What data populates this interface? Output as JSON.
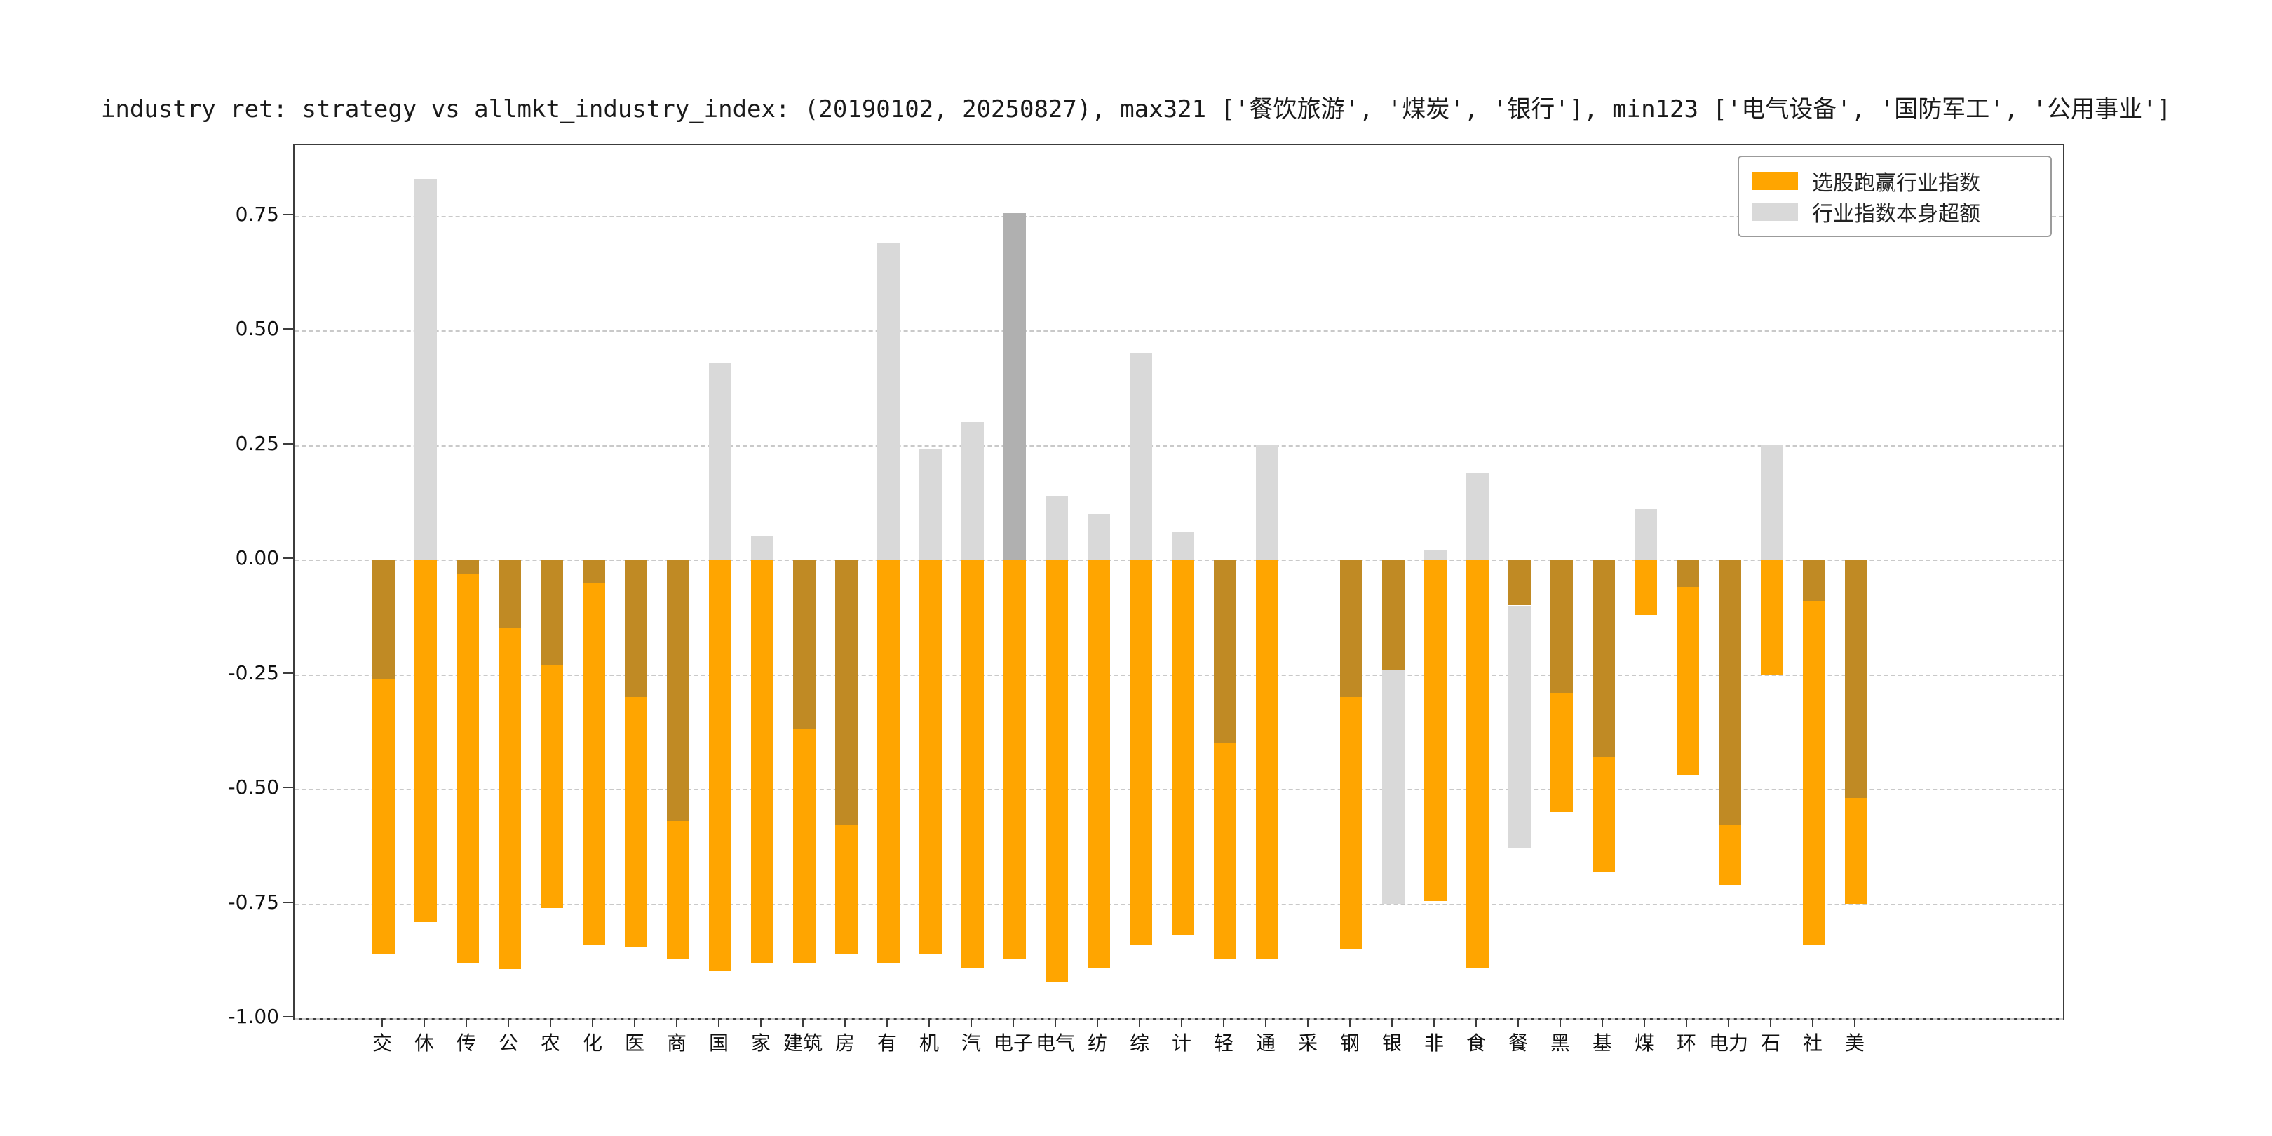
{
  "title": "industry ret: strategy vs allmkt_industry_index: (20190102, 20250827), max321 ['餐饮旅游', '煤炭', '银行'], min123 ['电气设备', '国防军工', '公用事业']",
  "legend": {
    "items": [
      {
        "label": "选股跑赢行业指数"
      },
      {
        "label": "行业指数本身超额"
      }
    ]
  },
  "chart_data": {
    "type": "bar",
    "title": "industry ret: strategy vs allmkt_industry_index: (20190102, 20250827), max321 ['餐饮旅游', '煤炭', '银行'], min123 ['电气设备', '国防军工', '公用事业']",
    "xlabel": "",
    "ylabel": "",
    "grid": "dashed",
    "legend_position": "upper right",
    "ylim": [
      -1.0,
      0.904
    ],
    "yticks": [
      {
        "value": -1.0,
        "label": "-1.00"
      },
      {
        "value": -0.75,
        "label": "-0.75"
      },
      {
        "value": -0.5,
        "label": "-0.50"
      },
      {
        "value": -0.25,
        "label": "-0.25"
      },
      {
        "value": 0.0,
        "label": "0.00"
      },
      {
        "value": 0.25,
        "label": "0.25"
      },
      {
        "value": 0.5,
        "label": "0.50"
      },
      {
        "value": 0.75,
        "label": "0.75"
      }
    ],
    "categories": [
      "交",
      "休",
      "传",
      "公",
      "农",
      "化",
      "医",
      "商",
      "国",
      "家",
      "建筑",
      "房",
      "有",
      "机",
      "汽",
      "电子",
      "电气",
      "纺",
      "综",
      "计",
      "轻",
      "通",
      "采",
      "钢",
      "银",
      "非",
      "食",
      "餐",
      "黑",
      "基",
      "煤",
      "环",
      "电力",
      "石",
      "社",
      "美"
    ],
    "series": [
      {
        "name": "选股跑赢行业指数",
        "color": "#FFA500",
        "values": [
          -0.86,
          -0.79,
          -0.88,
          -0.893,
          -0.76,
          -0.84,
          -0.845,
          -0.87,
          -0.898,
          -0.88,
          -0.88,
          -0.86,
          -0.88,
          -0.86,
          -0.89,
          -0.87,
          -0.92,
          -0.89,
          -0.84,
          -0.82,
          -0.87,
          -0.87,
          null,
          -0.85,
          -0.24,
          -0.745,
          -0.89,
          -0.1,
          -0.55,
          -0.68,
          -0.12,
          -0.47,
          -0.71,
          -0.25,
          -0.84,
          -0.75
        ]
      },
      {
        "name": "行业指数本身超额",
        "color": "#D9D9D9",
        "values": [
          -0.26,
          0.83,
          -0.03,
          -0.15,
          -0.23,
          -0.05,
          -0.3,
          -0.57,
          0.43,
          0.05,
          -0.37,
          -0.58,
          0.69,
          0.24,
          0.3,
          0.755,
          0.14,
          0.1,
          0.45,
          0.06,
          -0.4,
          0.25,
          null,
          -0.3,
          -0.75,
          0.02,
          0.19,
          -0.63,
          -0.29,
          -0.43,
          0.11,
          -0.06,
          -0.58,
          0.25,
          -0.09,
          -0.52
        ]
      }
    ],
    "overlap_color": "#c08a24",
    "index_color_override": {
      "电子": "#b0b0b0"
    }
  }
}
